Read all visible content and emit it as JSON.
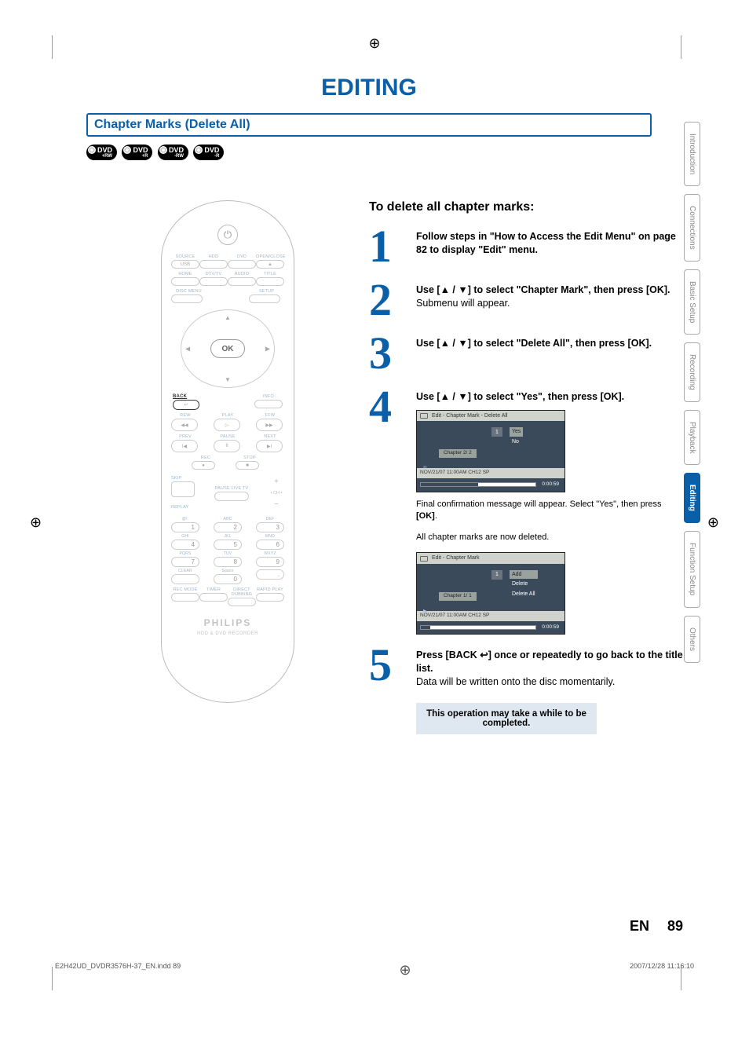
{
  "page_title": "EDITING",
  "section_header": "Chapter Marks (Delete All)",
  "dvd_badges": [
    {
      "main": "DVD",
      "sub": "+RW"
    },
    {
      "main": "DVD",
      "sub": "+R"
    },
    {
      "main": "DVD",
      "sub": "-RW"
    },
    {
      "main": "DVD",
      "sub": "-R"
    }
  ],
  "remote": {
    "power_glyph": "⏻",
    "row1": [
      "SOURCE",
      "HDD",
      "DVD",
      "OPEN/CLOSE"
    ],
    "row1b": [
      "USB",
      "",
      "",
      "▲"
    ],
    "row2": [
      "HOME",
      "DTV/TV",
      "AUDIO",
      "TITLE"
    ],
    "row3_left": "DISC MENU",
    "row3_right": "SETUP",
    "ok": "OK",
    "back": "BACK",
    "back_glyph": "↩",
    "info": "INFO",
    "transport_row1": [
      "REW",
      "PLAY",
      "FFW"
    ],
    "transport_row1_glyphs": [
      "◀◀",
      "▷",
      "▶▶"
    ],
    "transport_row2": [
      "PREV",
      "PAUSE",
      "NEXT"
    ],
    "transport_row2_glyphs": [
      "I◀",
      "II",
      "▶I"
    ],
    "rec": "REC",
    "rec_glyph": "●",
    "stop": "STOP",
    "stop_glyph": "■",
    "skip": "SKIP",
    "pause_live": "PAUSE LIVE TV",
    "replay": "REPLAY",
    "chplus": "+",
    "chlabel": "• CH •",
    "chminus": "−",
    "numpad_labels": [
      [
        "@!:",
        "ABC",
        "DEF"
      ],
      [
        "GHI",
        "JKL",
        "MNO"
      ],
      [
        "PQRS",
        "TUV",
        "WXYZ"
      ],
      [
        "CLEAR",
        "Space",
        ""
      ]
    ],
    "numpad_nums": [
      [
        "1",
        "2",
        "3"
      ],
      [
        "4",
        "5",
        "6"
      ],
      [
        "7",
        "8",
        "9"
      ],
      [
        "",
        "0",
        "."
      ]
    ],
    "bottom_row": [
      "REC MODE",
      "TIMER",
      "DIRECT DUBBING",
      "RAPID PLAY"
    ],
    "brand": "PHILIPS",
    "subtitle": "HDD & DVD RECORDER"
  },
  "right": {
    "subheading": "To delete all chapter marks:",
    "steps": [
      {
        "num": "1",
        "bold": "Follow steps in \"How to Access the Edit Menu\" on page 82 to display \"Edit\" menu.",
        "normal": ""
      },
      {
        "num": "2",
        "bold_pre": "Use [",
        "bold_mid": " / ",
        "bold_post": "] to select \"Chapter Mark\", then press [OK].",
        "normal": "Submenu will appear."
      },
      {
        "num": "3",
        "bold_pre": "Use [",
        "bold_mid": " / ",
        "bold_post": "] to select \"Delete All\", then press [OK].",
        "normal": ""
      },
      {
        "num": "4",
        "bold_pre": "Use [",
        "bold_mid": " / ",
        "bold_post": "] to select \"Yes\", then press [OK].",
        "normal": ""
      },
      {
        "num": "5",
        "bold_pre": "Press [BACK ",
        "bold_post": "] once or repeatedly to go back to the title list.",
        "normal": "Data will be written onto the disc momentarily."
      }
    ],
    "arrow_up": "▲",
    "arrow_down": "▼",
    "back_glyph": "↩",
    "osd1": {
      "title": "Edit - Chapter Mark - Delete All",
      "thumb": "1",
      "options": [
        "Yes",
        "No"
      ],
      "chapter": "Chapter    2/  2",
      "play_state": "II",
      "footer": "NOV/21/07 11:00AM CH12 SP",
      "time": "0:00:59"
    },
    "note1": "Final confirmation message will appear. Select \"Yes\", then press [OK].",
    "note2": "All chapter marks are now deleted.",
    "osd2": {
      "title": "Edit - Chapter Mark",
      "thumb": "1",
      "options": [
        "Add",
        "Delete",
        "Delete All"
      ],
      "chapter": "Chapter    1/  1",
      "play_state": "▶",
      "footer": "NOV/21/07 11:00AM CH12 SP",
      "time": "0:00:59"
    },
    "warning": "This operation may take a while to be completed."
  },
  "tabs": [
    "Introduction",
    "Connections",
    "Basic Setup",
    "Recording",
    "Playback",
    "Editing",
    "Function Setup",
    "Others"
  ],
  "active_tab": "Editing",
  "page_lang": "EN",
  "page_num": "89",
  "file_footer_left": "E2H42UD_DVDR3576H-37_EN.indd   89",
  "file_footer_right": "2007/12/28   11:16:10",
  "colors": {
    "accent": "#0a5fa9",
    "osd_bg": "#3a4a5a",
    "osd_title": "#d0d2cc",
    "warning058": "#dfe8f0"
  }
}
